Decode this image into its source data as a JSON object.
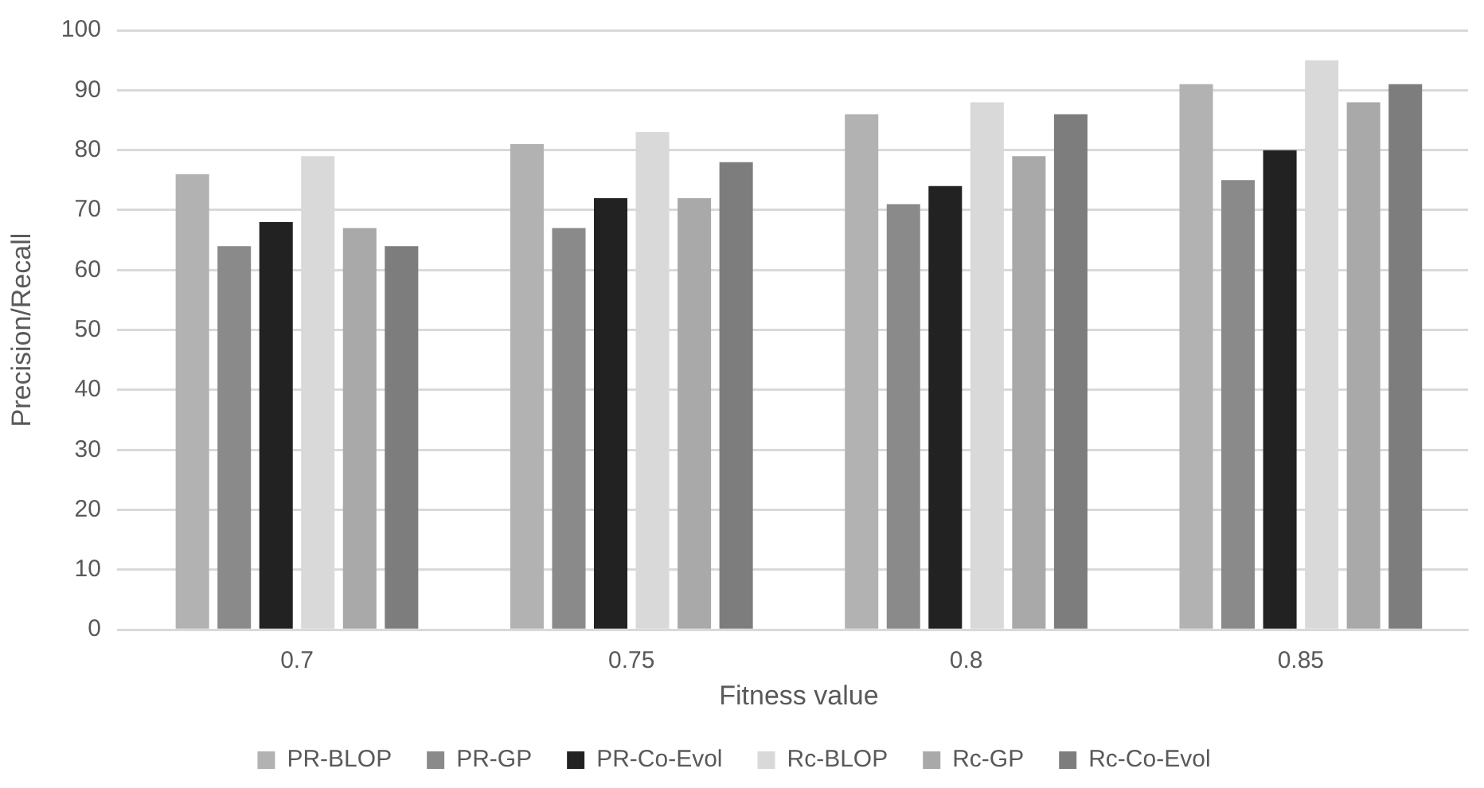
{
  "chart_data": {
    "type": "bar",
    "xlabel": "Fitness value",
    "ylabel": "Precision/Recall",
    "categories": [
      "0.7",
      "0.75",
      "0.8",
      "0.85"
    ],
    "series": [
      {
        "name": "PR-BLOP",
        "color": "#b2b2b2",
        "values": [
          76,
          81,
          86,
          91
        ]
      },
      {
        "name": "PR-GP",
        "color": "#8a8a8a",
        "values": [
          64,
          67,
          71,
          75
        ]
      },
      {
        "name": "PR-Co-Evol",
        "color": "#222222",
        "values": [
          68,
          72,
          74,
          80
        ]
      },
      {
        "name": "Rc-BLOP",
        "color": "#d9d9d9",
        "values": [
          79,
          83,
          88,
          95
        ]
      },
      {
        "name": "Rc-GP",
        "color": "#a9a9a9",
        "values": [
          67,
          72,
          79,
          88
        ]
      },
      {
        "name": "Rc-Co-Evol",
        "color": "#7d7d7d",
        "values": [
          64,
          78,
          86,
          91
        ]
      }
    ],
    "ylim": [
      0,
      100
    ],
    "yticks": [
      0,
      10,
      20,
      30,
      40,
      50,
      60,
      70,
      80,
      90,
      100
    ],
    "grid": "y",
    "legend": "bottom"
  }
}
